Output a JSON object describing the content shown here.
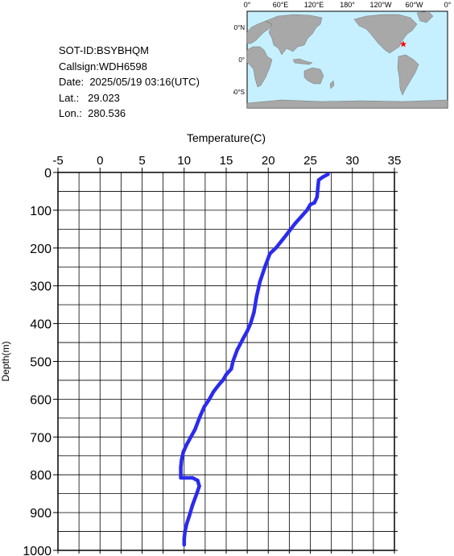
{
  "info": {
    "sot_id": "SOT-ID:BSYBHQM",
    "callsign": "Callsign:WDH6598",
    "date_label": "Date:",
    "date_value": "2025/05/19 03:16(UTC)",
    "lat_label": "Lat.:",
    "lat_value": "29.023",
    "lon_label": "Lon.:",
    "lon_value": "280.536"
  },
  "map": {
    "top_labels": [
      "0°",
      "60°E",
      "120°E",
      "180°",
      "120°W",
      "60°W",
      "0°"
    ],
    "left_labels": [
      "60°N",
      "0°",
      "60°S"
    ],
    "marker_lat": 29.023,
    "marker_lon": 280.536,
    "ocean_color": "#c6f0ff",
    "land_color": "#a8a8a8",
    "marker_color": "#ff0000"
  },
  "chart_data": {
    "type": "line",
    "xlabel": "Temperature(C)",
    "ylabel": "Depth(m)",
    "xlim": [
      -5,
      35
    ],
    "ylim": [
      0,
      1000
    ],
    "x_ticks": [
      -5,
      0,
      5,
      10,
      15,
      20,
      25,
      30,
      35
    ],
    "y_ticks": [
      0,
      100,
      200,
      300,
      400,
      500,
      600,
      700,
      800,
      900,
      1000
    ],
    "grid": true,
    "line_color": "#2b2bef",
    "series": [
      {
        "temperature": [
          27.1,
          26.5,
          26.0,
          25.9,
          25.8,
          25.5,
          25.0,
          24.6,
          24.0,
          23.2,
          22.5,
          21.8,
          20.9,
          20.2,
          19.6,
          19.0,
          18.6,
          18.3,
          17.9,
          17.5,
          17.0,
          16.3,
          15.8,
          15.6,
          15.0,
          14.6,
          14.2,
          13.5,
          13.0,
          12.4,
          11.8,
          11.3,
          10.8,
          10.3,
          9.9,
          9.7,
          9.6,
          9.6,
          9.6,
          10.2,
          11.0,
          11.6,
          11.8,
          11.5,
          11.0,
          10.6,
          10.3,
          10.1,
          10.0,
          10.0
        ],
        "depth": [
          5,
          12,
          20,
          40,
          65,
          80,
          85,
          100,
          115,
          135,
          155,
          175,
          200,
          215,
          250,
          290,
          330,
          370,
          400,
          420,
          440,
          470,
          500,
          520,
          535,
          550,
          560,
          580,
          600,
          620,
          650,
          680,
          700,
          720,
          740,
          760,
          780,
          800,
          808,
          808,
          808,
          815,
          830,
          850,
          880,
          910,
          930,
          950,
          970,
          985
        ]
      }
    ]
  }
}
